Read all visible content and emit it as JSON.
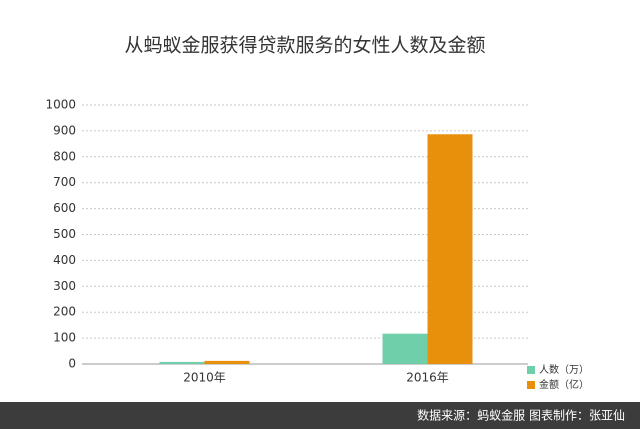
{
  "chart_data": {
    "type": "bar",
    "title": "从蚂蚁金服获得贷款服务的女性人数及金额",
    "categories": [
      "2010年",
      "2016年"
    ],
    "series": [
      {
        "name": "人数（万）",
        "color": "#6fcfaa",
        "values": [
          8,
          117
        ]
      },
      {
        "name": "金额（亿）",
        "color": "#e8900c",
        "values": [
          12,
          887
        ]
      }
    ],
    "ylim": [
      0,
      1000
    ],
    "yticks": [
      0,
      100,
      200,
      300,
      400,
      500,
      600,
      700,
      800,
      900,
      1000
    ],
    "grid": true,
    "legend": "bottom-right",
    "source": "数据来源：蚂蚁金服  图表制作：张亚仙"
  }
}
